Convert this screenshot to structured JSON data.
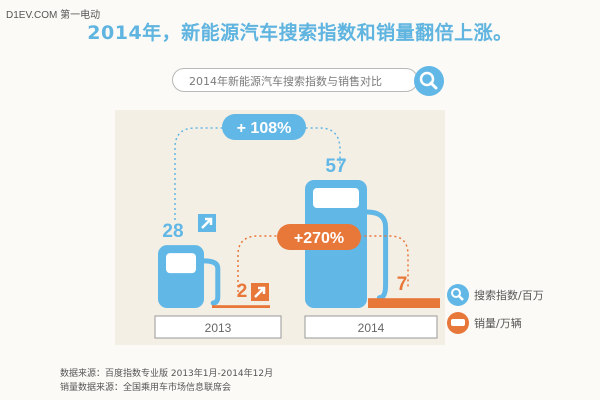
{
  "watermark": "D1EV.COM 第一电动",
  "title": "2014年，新能源汽车搜索指数和销量翻倍上涨。",
  "search": {
    "text": "2014年新能源汽车搜索指数与销售对比",
    "icon": "search-icon"
  },
  "colors": {
    "search": "#61b7e6",
    "sales": "#e8773a",
    "title": "#5fb4e0"
  },
  "chart_data": {
    "type": "bar",
    "categories": [
      "2013",
      "2014"
    ],
    "series": [
      {
        "name": "搜索指数/百万",
        "values": [
          28,
          57
        ],
        "color": "#61b7e6"
      },
      {
        "name": "销量/万辆",
        "values": [
          2,
          7
        ],
        "color": "#e8773a"
      }
    ],
    "growth": [
      {
        "label": "+ 108%",
        "series": "搜索指数/百万"
      },
      {
        "label": "+270%",
        "series": "销量/万辆"
      }
    ],
    "legend": [
      "搜索指数/百万",
      "销量/万辆"
    ],
    "legend_position": "right"
  },
  "source": {
    "line1": "数据来源：百度指数专业版 2013年1月-2014年12月",
    "line2": "销量数据来源：全国乘用车市场信息联席会"
  }
}
